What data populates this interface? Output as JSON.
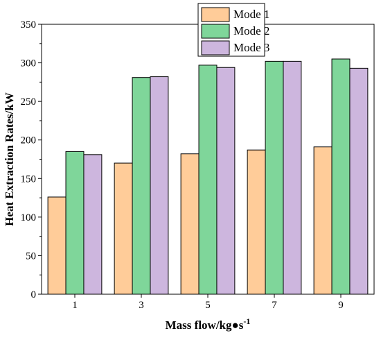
{
  "chart_data": {
    "type": "bar",
    "title": "",
    "xlabel": "Mass flow/kg●s",
    "xlabel_superscript": "-1",
    "ylabel": "Heat Extraction Rates/kW",
    "ylim": [
      0,
      350
    ],
    "yticks": [
      "0",
      "50",
      "100",
      "150",
      "200",
      "250",
      "300",
      "350"
    ],
    "categories": [
      "1",
      "3",
      "5",
      "7",
      "9"
    ],
    "legend_position": "top-right",
    "grid": false,
    "series": [
      {
        "name": "Mode 1",
        "color": "#FFCC99",
        "values": [
          126,
          170,
          182,
          187,
          191
        ]
      },
      {
        "name": "Mode 2",
        "color": "#7FD69A",
        "values": [
          185,
          281,
          297,
          302,
          305
        ]
      },
      {
        "name": "Mode 3",
        "color": "#CDB6DE",
        "values": [
          181,
          282,
          294,
          302,
          293
        ]
      }
    ]
  }
}
